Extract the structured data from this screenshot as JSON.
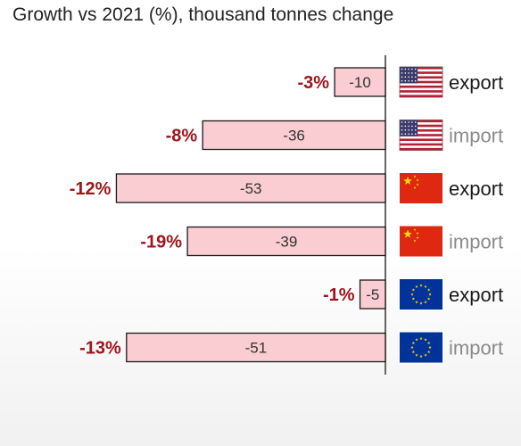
{
  "chart_data": {
    "type": "bar",
    "orientation": "horizontal",
    "title": "Growth vs 2021 (%), thousand tonnes change",
    "categories": [
      "US export",
      "US import",
      "China export",
      "China import",
      "EU export",
      "EU import"
    ],
    "rows": [
      {
        "flag": "us-flag-icon",
        "label": "export",
        "label_color": "#1a1a1a",
        "value": -10,
        "value_label": "-10",
        "pct_label": "-3%"
      },
      {
        "flag": "us-flag-icon",
        "label": "import",
        "label_color": "#8a8a8a",
        "value": -36,
        "value_label": "-36",
        "pct_label": "-8%"
      },
      {
        "flag": "china-flag-icon",
        "label": "export",
        "label_color": "#1a1a1a",
        "value": -53,
        "value_label": "-53",
        "pct_label": "-12%"
      },
      {
        "flag": "china-flag-icon",
        "label": "import",
        "label_color": "#8a8a8a",
        "value": -39,
        "value_label": "-39",
        "pct_label": "-19%"
      },
      {
        "flag": "eu-flag-icon",
        "label": "export",
        "label_color": "#1a1a1a",
        "value": -5,
        "value_label": "-5",
        "pct_label": "-1%"
      },
      {
        "flag": "eu-flag-icon",
        "label": "import",
        "label_color": "#8a8a8a",
        "value": -51,
        "value_label": "-51",
        "pct_label": "-13%"
      }
    ],
    "colors": {
      "bar_fill": "#f9cdd1",
      "bar_stroke": "#1a1a1a",
      "pct_text": "#a0141b",
      "axis": "#333333"
    }
  }
}
